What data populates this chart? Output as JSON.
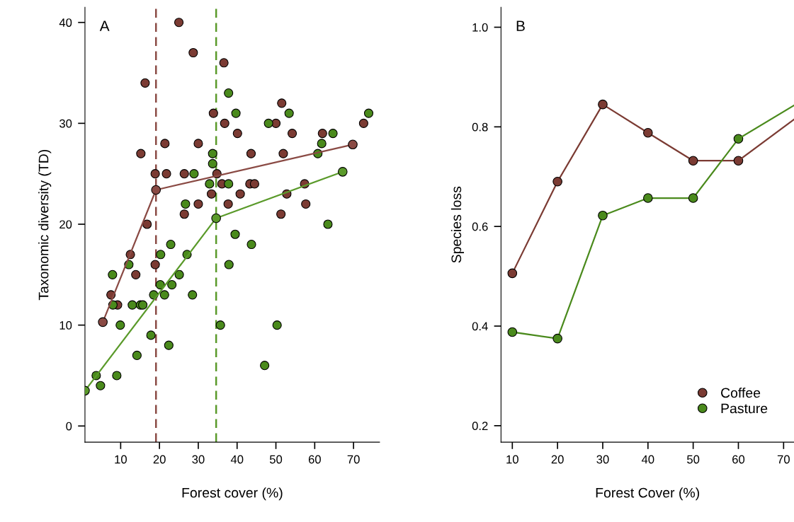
{
  "chart_data": [
    {
      "type": "scatter",
      "xlabel": "Forest cover (%)",
      "ylabel": "Taxonomic diversity (TD)",
      "annotations": [
        "A"
      ],
      "xlim": [
        0.8,
        76.7
      ],
      "ylim": [
        -1.6,
        41.5
      ],
      "xticks": [
        10,
        20,
        30,
        40,
        50,
        60,
        70
      ],
      "yticks": [
        0,
        10,
        20,
        30,
        40
      ],
      "grid": false,
      "legend": false,
      "marker": "circle",
      "series": [
        {
          "color": "#7b3b33",
          "x": [
            25.0,
            28.7,
            36.6,
            16.3,
            33.9,
            36.8,
            21.4,
            30.0,
            15.2,
            18.9,
            21.8,
            26.4,
            34.8,
            36.1,
            33.4,
            30.0,
            26.4,
            37.7,
            16.8,
            40.1,
            51.5,
            50.0,
            54.2,
            62.0,
            72.6,
            43.6,
            51.9,
            43.3,
            44.5,
            57.4,
            40.8,
            52.8,
            57.7,
            51.3,
            12.5,
            13.9,
            7.5,
            18.9,
            9.2
          ],
          "values": [
            40,
            37,
            36,
            34,
            31,
            30,
            28,
            28,
            27,
            25,
            25,
            25,
            25,
            24,
            23,
            22,
            21,
            22,
            20,
            29,
            32,
            30,
            29,
            29,
            30,
            27,
            27,
            24,
            24,
            24,
            23,
            23,
            22,
            21,
            17,
            15,
            13,
            16,
            12
          ]
        },
        {
          "color": "#4a8a1c",
          "x": [
            37.8,
            33.7,
            33.7,
            28.9,
            32.9,
            37.8,
            26.7,
            39.7,
            53.4,
            48.1,
            64.7,
            61.8,
            73.9,
            60.8,
            63.4,
            12.1,
            7.9,
            22.9,
            20.3,
            27.1,
            25.1,
            20.2,
            23.2,
            18.5,
            21.3,
            28.5,
            8.0,
            13.0,
            15.1,
            15.7,
            9.9,
            17.8,
            22.4,
            14.2,
            3.7,
            9.0,
            4.8,
            35.7,
            37.9,
            39.5,
            43.7,
            50.3,
            47.1
          ],
          "values": [
            33,
            27,
            26,
            25,
            24,
            24,
            22,
            31,
            31,
            30,
            29,
            28,
            31,
            27,
            20,
            16,
            15,
            18,
            17,
            17,
            15,
            14,
            14,
            13,
            13,
            13,
            12,
            12,
            12,
            12,
            10,
            9,
            8,
            7,
            5,
            5,
            4,
            10,
            16,
            19,
            18,
            10,
            6
          ]
        },
        {
          "type": "line",
          "color": "#8a4a44",
          "x": [
            5.4,
            19.1,
            69.8
          ],
          "values": [
            10.3,
            23.4,
            27.9
          ]
        },
        {
          "type": "line",
          "color": "#5a9a2a",
          "x": [
            0.8,
            34.6,
            67.2
          ],
          "values": [
            3.5,
            20.6,
            25.2
          ]
        }
      ],
      "ref_lines": [
        {
          "axis": "x",
          "value": 19.1,
          "color": "#8a4a44",
          "line_style": "dashed"
        },
        {
          "axis": "x",
          "value": 34.6,
          "color": "#5a9a2a",
          "line_style": "dashed"
        }
      ]
    },
    {
      "type": "line",
      "xlabel": "Forest Cover (%)",
      "ylabel": "Species loss",
      "annotations": [
        "B"
      ],
      "xlim": [
        7.5,
        72.3
      ],
      "ylim": [
        0.167,
        1.04
      ],
      "xticks": [
        10,
        20,
        30,
        40,
        50,
        60,
        70
      ],
      "yticks": [
        0.2,
        0.4,
        0.6,
        0.8,
        {
          "value": 1.0,
          "label": "1.0"
        }
      ],
      "grid": false,
      "legend": "bottom right",
      "marker": "circle",
      "series": [
        {
          "name": "Coffee",
          "color": "#7b3b33",
          "x": [
            10,
            20,
            30,
            40,
            50,
            60
          ],
          "values": [
            0.506,
            0.69,
            0.845,
            0.788,
            0.732,
            0.732
          ]
        },
        {
          "name": "Pasture",
          "color": "#4a8a1c",
          "x": [
            10,
            20,
            30,
            40,
            50,
            60
          ],
          "values": [
            0.388,
            0.375,
            0.622,
            0.657,
            0.657,
            0.776
          ]
        },
        {
          "color": "#7b3b33",
          "marker": "none",
          "x": [
            60,
            72.3
          ],
          "values": [
            0.732,
            0.815
          ]
        },
        {
          "color": "#4a8a1c",
          "marker": "none",
          "x": [
            60,
            72.3
          ],
          "values": [
            0.776,
            0.843
          ]
        }
      ]
    }
  ]
}
